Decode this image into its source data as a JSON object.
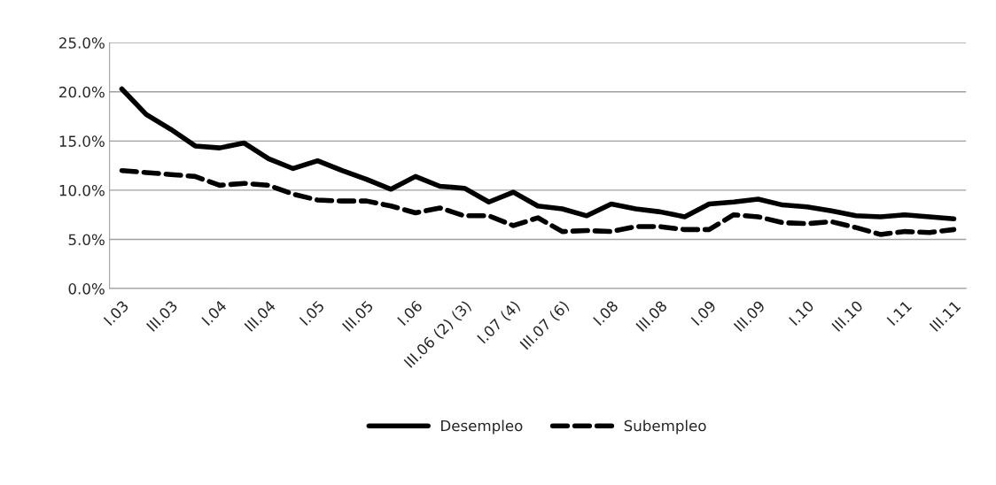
{
  "chart_data": {
    "type": "line",
    "categories": [
      "I.03",
      null,
      "III.03",
      null,
      "I.04",
      null,
      "III.04",
      null,
      "I.05",
      null,
      "III.05",
      null,
      "I.06",
      null,
      "III.06 (2) (3)",
      null,
      "I.07 (4)",
      null,
      "III.07 (6)",
      null,
      "I.08",
      null,
      "III.08",
      null,
      "I.09",
      null,
      "III.09",
      null,
      "I.10",
      null,
      "III.10",
      null,
      "I.11",
      null,
      "III.11"
    ],
    "series": [
      {
        "name": "Desempleo",
        "color": "#000000",
        "line_style": "solid",
        "values": [
          20.3,
          17.7,
          16.2,
          14.5,
          14.3,
          14.8,
          13.2,
          12.2,
          13.0,
          12.0,
          11.1,
          10.1,
          11.4,
          10.4,
          10.2,
          8.8,
          9.8,
          8.4,
          8.1,
          7.4,
          8.6,
          8.1,
          7.8,
          7.3,
          8.6,
          8.8,
          9.1,
          8.5,
          8.3,
          7.9,
          7.4,
          7.3,
          7.5,
          7.3,
          7.1
        ]
      },
      {
        "name": "Subempleo",
        "color": "#000000",
        "line_style": "dashed",
        "values": [
          12.0,
          11.8,
          11.6,
          11.4,
          10.5,
          10.7,
          10.5,
          9.6,
          9.0,
          8.9,
          8.9,
          8.4,
          7.7,
          8.2,
          7.4,
          7.4,
          6.4,
          7.2,
          5.8,
          5.9,
          5.8,
          6.3,
          6.3,
          6.0,
          6.0,
          7.5,
          7.3,
          6.7,
          6.6,
          6.8,
          6.2,
          5.5,
          5.8,
          5.7,
          6.0
        ]
      }
    ],
    "ylim": [
      0,
      25
    ],
    "yticks": [
      {
        "value": 0,
        "label": "0.0%"
      },
      {
        "value": 5,
        "label": "5.0%"
      },
      {
        "value": 10,
        "label": "10.0%"
      },
      {
        "value": 15,
        "label": "15.0%"
      },
      {
        "value": 20,
        "label": "20.0%"
      },
      {
        "value": 25,
        "label": "25.0%"
      }
    ],
    "grid": "y",
    "legend": "bottom",
    "marker": "none"
  }
}
